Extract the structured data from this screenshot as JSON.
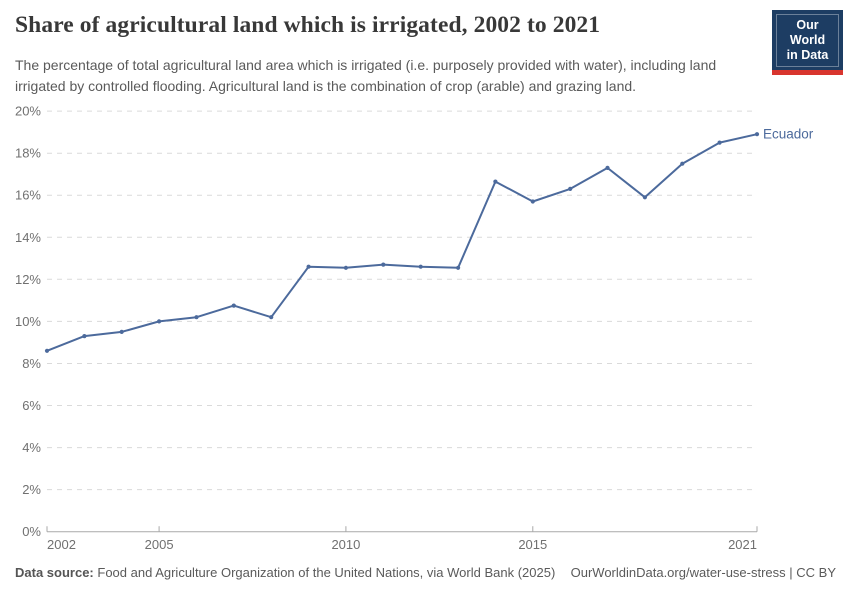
{
  "header": {
    "title": "Share of agricultural land which is irrigated, 2002 to 2021",
    "subtitle": "The percentage of total agricultural land area which is irrigated (i.e. purposely provided with water), including land irrigated by controlled flooding. Agricultural land is the combination of crop (arable) and grazing land.",
    "logo": {
      "line1": "Our World",
      "line2": "in Data",
      "bg_color": "#1d3d63",
      "accent_color": "#d8352e"
    }
  },
  "chart_data": {
    "type": "line",
    "title": "Share of agricultural land which is irrigated, 2002 to 2021",
    "x": [
      2002,
      2003,
      2004,
      2005,
      2006,
      2007,
      2008,
      2009,
      2010,
      2011,
      2012,
      2013,
      2014,
      2015,
      2016,
      2017,
      2018,
      2019,
      2020,
      2021
    ],
    "series": [
      {
        "name": "Ecuador",
        "color": "#4c6a9c",
        "values": [
          8.6,
          9.3,
          9.5,
          10.0,
          10.2,
          10.75,
          10.2,
          12.6,
          12.55,
          12.7,
          12.6,
          12.55,
          16.65,
          15.7,
          16.3,
          17.3,
          15.9,
          17.5,
          18.5,
          18.9
        ]
      }
    ],
    "xlabel": "",
    "ylabel": "",
    "ylim": [
      0,
      20
    ],
    "ytick_step": 2,
    "ytick_suffix": "%",
    "xticks": [
      2002,
      2005,
      2010,
      2015,
      2021
    ],
    "grid": "horizontal-dashed",
    "legend": "line-end-label",
    "grid_color": "#dadada",
    "axis_color": "#a9a9a9",
    "tick_label_color": "#707070"
  },
  "footer": {
    "datasource_label": "Data source:",
    "datasource_text": "Food and Agriculture Organization of the United Nations, via World Bank (2025)",
    "credit": "OurWorldinData.org/water-use-stress | CC BY"
  }
}
